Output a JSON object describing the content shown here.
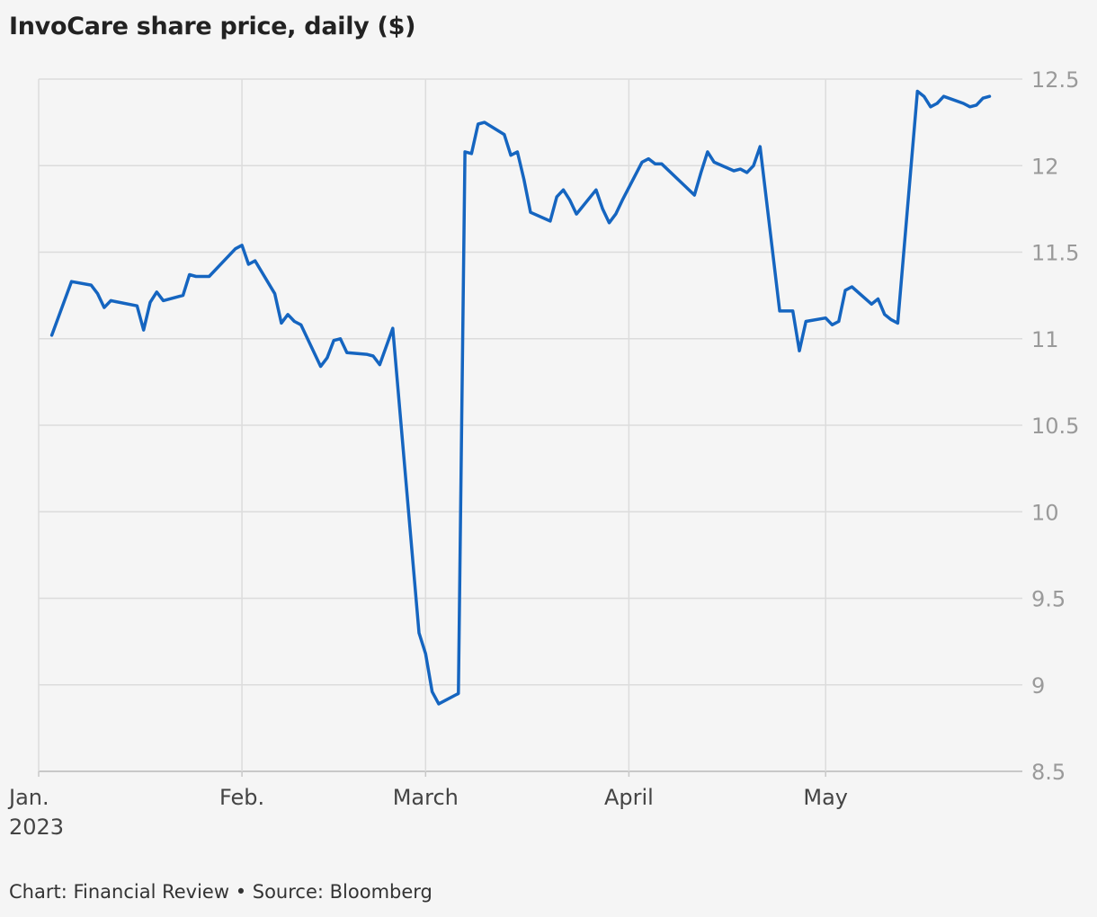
{
  "header": {
    "title": "InvoCare share price, daily ($)"
  },
  "footer": {
    "source": "Chart: Financial Review • Source: Bloomberg"
  },
  "colors": {
    "line": "#1565c0",
    "grid": "#dcdcdc",
    "background": "#f5f5f5"
  },
  "chart_data": {
    "type": "line",
    "title": "InvoCare share price, daily ($)",
    "xlabel": "",
    "ylabel": "",
    "ylim": [
      8.5,
      12.5
    ],
    "yticks": [
      8.5,
      9,
      9.5,
      10,
      10.5,
      11,
      11.5,
      12,
      12.5
    ],
    "y_axis_position": "right",
    "grid": true,
    "xlim": [
      "2023-01-01",
      "2023-05-31"
    ],
    "x_ticks": [
      {
        "date": "2023-01-01",
        "label": "Jan.",
        "sublabel": "2023"
      },
      {
        "date": "2023-02-01",
        "label": "Feb.",
        "sublabel": ""
      },
      {
        "date": "2023-03-01",
        "label": "March",
        "sublabel": ""
      },
      {
        "date": "2023-04-01",
        "label": "April",
        "sublabel": ""
      },
      {
        "date": "2023-05-01",
        "label": "May",
        "sublabel": ""
      }
    ],
    "series": [
      {
        "values": [
          [
            "2023-01-03",
            11.02
          ],
          [
            "2023-01-06",
            11.33
          ],
          [
            "2023-01-09",
            11.31
          ],
          [
            "2023-01-10",
            11.26
          ],
          [
            "2023-01-11",
            11.18
          ],
          [
            "2023-01-12",
            11.22
          ],
          [
            "2023-01-16",
            11.19
          ],
          [
            "2023-01-17",
            11.05
          ],
          [
            "2023-01-18",
            11.21
          ],
          [
            "2023-01-19",
            11.27
          ],
          [
            "2023-01-20",
            11.22
          ],
          [
            "2023-01-23",
            11.25
          ],
          [
            "2023-01-24",
            11.37
          ],
          [
            "2023-01-25",
            11.36
          ],
          [
            "2023-01-27",
            11.36
          ],
          [
            "2023-01-31",
            11.52
          ],
          [
            "2023-02-01",
            11.54
          ],
          [
            "2023-02-02",
            11.43
          ],
          [
            "2023-02-03",
            11.45
          ],
          [
            "2023-02-06",
            11.26
          ],
          [
            "2023-02-07",
            11.09
          ],
          [
            "2023-02-08",
            11.14
          ],
          [
            "2023-02-09",
            11.1
          ],
          [
            "2023-02-10",
            11.08
          ],
          [
            "2023-02-13",
            10.84
          ],
          [
            "2023-02-14",
            10.89
          ],
          [
            "2023-02-15",
            10.99
          ],
          [
            "2023-02-16",
            11.0
          ],
          [
            "2023-02-17",
            10.92
          ],
          [
            "2023-02-20",
            10.91
          ],
          [
            "2023-02-21",
            10.9
          ],
          [
            "2023-02-22",
            10.85
          ],
          [
            "2023-02-24",
            11.06
          ],
          [
            "2023-02-28",
            9.3
          ],
          [
            "2023-03-01",
            9.18
          ],
          [
            "2023-03-02",
            8.96
          ],
          [
            "2023-03-03",
            8.89
          ],
          [
            "2023-03-06",
            8.95
          ],
          [
            "2023-03-07",
            12.08
          ],
          [
            "2023-03-08",
            12.07
          ],
          [
            "2023-03-09",
            12.24
          ],
          [
            "2023-03-10",
            12.25
          ],
          [
            "2023-03-13",
            12.18
          ],
          [
            "2023-03-14",
            12.06
          ],
          [
            "2023-03-15",
            12.08
          ],
          [
            "2023-03-16",
            11.92
          ],
          [
            "2023-03-17",
            11.73
          ],
          [
            "2023-03-20",
            11.68
          ],
          [
            "2023-03-21",
            11.82
          ],
          [
            "2023-03-22",
            11.86
          ],
          [
            "2023-03-23",
            11.8
          ],
          [
            "2023-03-24",
            11.72
          ],
          [
            "2023-03-27",
            11.86
          ],
          [
            "2023-03-28",
            11.75
          ],
          [
            "2023-03-29",
            11.67
          ],
          [
            "2023-03-30",
            11.72
          ],
          [
            "2023-03-31",
            11.8
          ],
          [
            "2023-04-03",
            12.02
          ],
          [
            "2023-04-04",
            12.04
          ],
          [
            "2023-04-05",
            12.01
          ],
          [
            "2023-04-06",
            12.01
          ],
          [
            "2023-04-11",
            11.83
          ],
          [
            "2023-04-12",
            11.96
          ],
          [
            "2023-04-13",
            12.08
          ],
          [
            "2023-04-14",
            12.02
          ],
          [
            "2023-04-17",
            11.97
          ],
          [
            "2023-04-18",
            11.98
          ],
          [
            "2023-04-19",
            11.96
          ],
          [
            "2023-04-20",
            12.0
          ],
          [
            "2023-04-21",
            12.11
          ],
          [
            "2023-04-24",
            11.16
          ],
          [
            "2023-04-26",
            11.16
          ],
          [
            "2023-04-27",
            10.93
          ],
          [
            "2023-04-28",
            11.1
          ],
          [
            "2023-05-01",
            11.12
          ],
          [
            "2023-05-02",
            11.08
          ],
          [
            "2023-05-03",
            11.1
          ],
          [
            "2023-05-04",
            11.28
          ],
          [
            "2023-05-05",
            11.3
          ],
          [
            "2023-05-08",
            11.2
          ],
          [
            "2023-05-09",
            11.23
          ],
          [
            "2023-05-10",
            11.14
          ],
          [
            "2023-05-11",
            11.11
          ],
          [
            "2023-05-12",
            11.09
          ],
          [
            "2023-05-15",
            12.43
          ],
          [
            "2023-05-16",
            12.4
          ],
          [
            "2023-05-17",
            12.34
          ],
          [
            "2023-05-18",
            12.36
          ],
          [
            "2023-05-19",
            12.4
          ],
          [
            "2023-05-22",
            12.36
          ],
          [
            "2023-05-23",
            12.34
          ],
          [
            "2023-05-24",
            12.35
          ],
          [
            "2023-05-25",
            12.39
          ],
          [
            "2023-05-26",
            12.4
          ]
        ]
      }
    ]
  }
}
